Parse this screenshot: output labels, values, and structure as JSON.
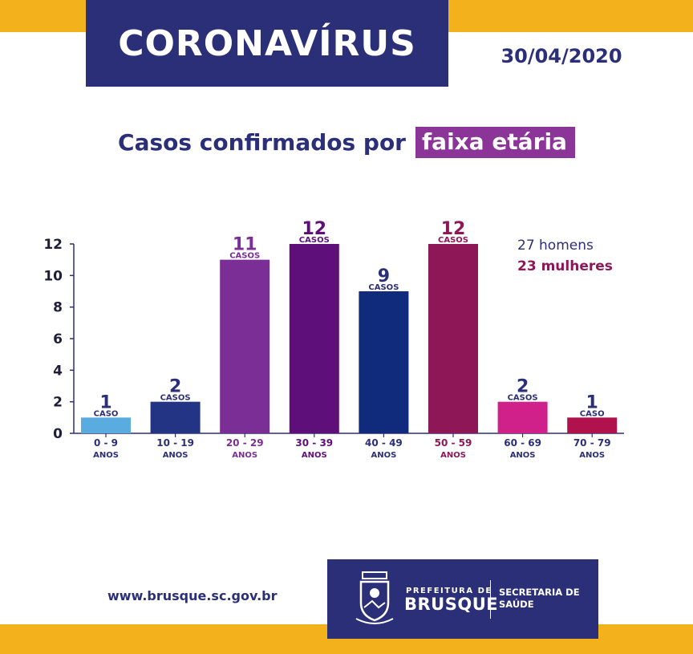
{
  "header": {
    "title": "CORONAVÍRUS",
    "date": "30/04/2020"
  },
  "subtitle": {
    "prefix": "Casos confirmados por",
    "highlight": "faixa etária"
  },
  "legend": {
    "men": "27 homens",
    "women": "23 mulheres"
  },
  "footer": {
    "url": "www.brusque.sc.gov.br",
    "logo_prefeitura": "PREFEITURA DE",
    "logo_brusque": "BRUSQUE",
    "logo_secretaria_line1": "SECRETARIA DE",
    "logo_secretaria_line2": "SAÚDE"
  },
  "colors": {
    "navy": "#2b2f78",
    "yellow": "#f3b21c",
    "purple_highlight": "#8b3598",
    "women": "#8e1757"
  },
  "chart_data": {
    "type": "bar",
    "categories": [
      "0 - 9",
      "10 - 19",
      "20 - 29",
      "30 - 39",
      "40 - 49",
      "50 - 59",
      "60 - 69",
      "70 - 79"
    ],
    "category_sublabel": "ANOS",
    "values": [
      1,
      2,
      11,
      12,
      9,
      12,
      2,
      1
    ],
    "value_units": [
      "CASO",
      "CASOS",
      "CASOS",
      "CASOS",
      "CASOS",
      "CASOS",
      "CASOS",
      "CASO"
    ],
    "bar_colors": [
      "#5aace0",
      "#233485",
      "#7b2f96",
      "#5e0f7a",
      "#112b7c",
      "#8e1757",
      "#d0208a",
      "#b0124e"
    ],
    "label_colors": [
      "#2b2f78",
      "#2b2f78",
      "#7b2f96",
      "#5e0f7a",
      "#2b2f78",
      "#8e1757",
      "#2b2f78",
      "#2b2f78"
    ],
    "ylim": [
      0,
      12
    ],
    "yticks": [
      0,
      2,
      4,
      6,
      8,
      10,
      12
    ],
    "title": "Casos confirmados por faixa etária"
  }
}
